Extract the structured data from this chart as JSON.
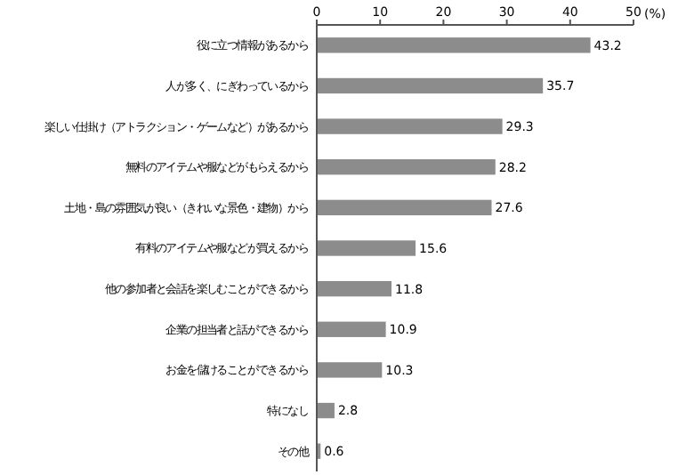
{
  "chart_data": {
    "type": "bar",
    "orientation": "horizontal",
    "xlabel": "(%)",
    "categories": [
      "役に立つ情報があるから",
      "人が多く、にぎわっているから",
      "楽しい仕掛け（アトラクション・ゲームなど）があるから",
      "無料のアイテムや服などがもらえるから",
      "土地・島の雰囲気が良い（きれいな景色・建物）から",
      "有料のアイテムや服などが買えるから",
      "他の参加者と会話を楽しむことができるから",
      "企業の担当者と話ができるから",
      "お金を儲けることができるから",
      "特になし",
      "その他"
    ],
    "values": [
      43.2,
      35.7,
      29.3,
      28.2,
      27.6,
      15.6,
      11.8,
      10.9,
      10.3,
      2.8,
      0.6
    ],
    "color": "#8c8c8c",
    "data_labels": true,
    "xlim": [
      0,
      50
    ],
    "xticks": [
      0,
      10,
      20,
      30,
      40,
      50
    ],
    "grid": false
  }
}
